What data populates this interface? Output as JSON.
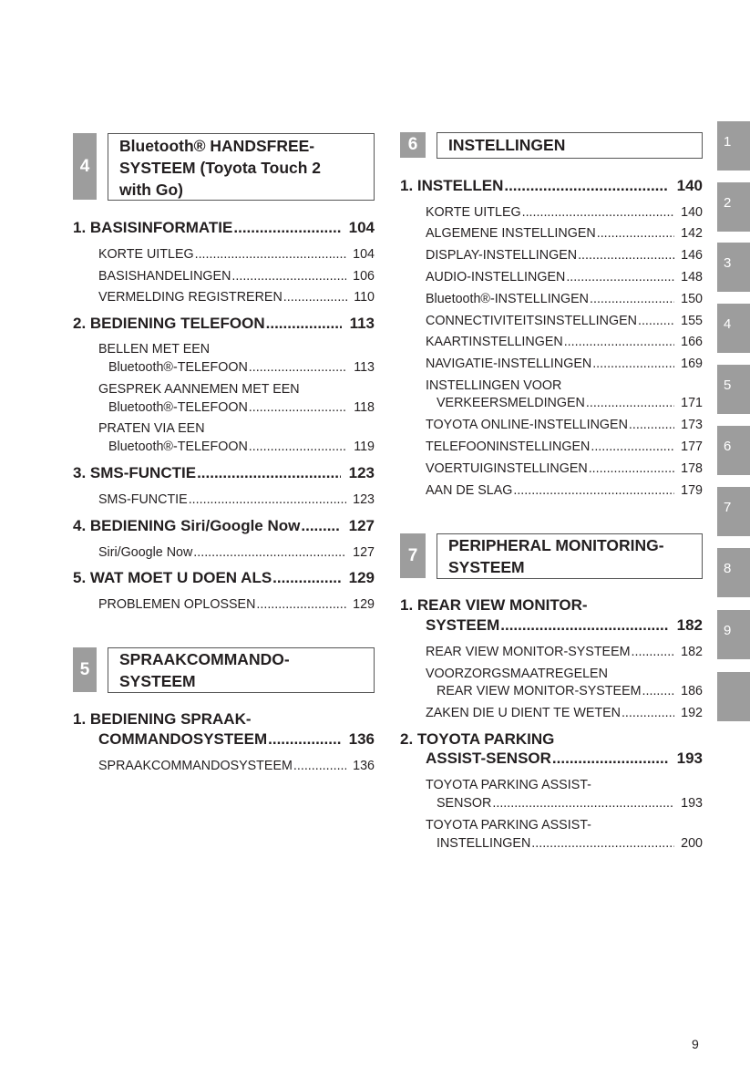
{
  "sections": {
    "s4": {
      "number": "4",
      "title_lines": [
        "Bluetooth® HANDSFREE-",
        "SYSTEEM (Toyota Touch 2",
        "with Go)"
      ]
    },
    "s5": {
      "number": "5",
      "title_lines": [
        "SPRAAKCOMMANDO-",
        "SYSTEEM"
      ]
    },
    "s6": {
      "number": "6",
      "title_lines": [
        "INSTELLINGEN"
      ]
    },
    "s7": {
      "number": "7",
      "title_lines": [
        "PERIPHERAL MONITORING-",
        "SYSTEEM"
      ]
    }
  },
  "left": {
    "items": [
      {
        "label": "1. BASISINFORMATIE",
        "page": "104"
      },
      {
        "label": "KORTE UITLEG",
        "page": "104"
      },
      {
        "label": "BASISHANDELINGEN",
        "page": "106"
      },
      {
        "label": "VERMELDING REGISTREREN",
        "page": "110"
      },
      {
        "label": "2. BEDIENING TELEFOON",
        "page": "113"
      },
      {
        "label": "BELLEN MET EEN",
        "page": ""
      },
      {
        "label": "Bluetooth®-TELEFOON",
        "page": "113"
      },
      {
        "label": "GESPREK AANNEMEN MET EEN",
        "page": ""
      },
      {
        "label": "Bluetooth®-TELEFOON",
        "page": "118"
      },
      {
        "label": "PRATEN VIA EEN",
        "page": ""
      },
      {
        "label": "Bluetooth®-TELEFOON",
        "page": "119"
      },
      {
        "label": "3. SMS-FUNCTIE",
        "page": "123"
      },
      {
        "label": "SMS-FUNCTIE",
        "page": "123"
      },
      {
        "label": "4. BEDIENING Siri/Google Now",
        "page": "127"
      },
      {
        "label": "Siri/Google Now",
        "page": "127"
      },
      {
        "label": "5. WAT MOET U DOEN ALS",
        "page": "129"
      },
      {
        "label": "PROBLEMEN OPLOSSEN",
        "page": "129"
      },
      {
        "label": "1. BEDIENING SPRAAK-",
        "page": ""
      },
      {
        "label": "COMMANDOSYSTEEM",
        "page": "136"
      },
      {
        "label": "SPRAAKCOMMANDOSYSTEEM",
        "page": "136"
      }
    ]
  },
  "right": {
    "items": [
      {
        "label": "1. INSTELLEN",
        "page": "140"
      },
      {
        "label": "KORTE UITLEG",
        "page": "140"
      },
      {
        "label": "ALGEMENE INSTELLINGEN",
        "page": "142"
      },
      {
        "label": "DISPLAY-INSTELLINGEN",
        "page": "146"
      },
      {
        "label": "AUDIO-INSTELLINGEN",
        "page": "148"
      },
      {
        "label": "Bluetooth®-INSTELLINGEN",
        "page": "150"
      },
      {
        "label": "CONNECTIVITEITSINSTELLINGEN",
        "page": "155"
      },
      {
        "label": "KAARTINSTELLINGEN",
        "page": "166"
      },
      {
        "label": "NAVIGATIE-INSTELLINGEN",
        "page": "169"
      },
      {
        "label": "INSTELLINGEN VOOR",
        "page": ""
      },
      {
        "label": "VERKEERSMELDINGEN",
        "page": "171"
      },
      {
        "label": "TOYOTA ONLINE-INSTELLINGEN",
        "page": "173"
      },
      {
        "label": "TELEFOONINSTELLINGEN",
        "page": "177"
      },
      {
        "label": "VOERTUIGINSTELLINGEN",
        "page": "178"
      },
      {
        "label": "AAN DE SLAG",
        "page": "179"
      },
      {
        "label": "1. REAR VIEW MONITOR-",
        "page": ""
      },
      {
        "label": "SYSTEEM",
        "page": "182"
      },
      {
        "label": "REAR VIEW MONITOR-SYSTEEM",
        "page": "182"
      },
      {
        "label": "VOORZORGSMAATREGELEN",
        "page": ""
      },
      {
        "label": "REAR VIEW MONITOR-SYSTEEM",
        "page": "186"
      },
      {
        "label": "ZAKEN DIE U DIENT TE WETEN",
        "page": "192"
      },
      {
        "label": "2. TOYOTA PARKING",
        "page": ""
      },
      {
        "label": "ASSIST-SENSOR",
        "page": "193"
      },
      {
        "label": "TOYOTA PARKING ASSIST-",
        "page": ""
      },
      {
        "label": "SENSOR",
        "page": "193"
      },
      {
        "label": "TOYOTA PARKING ASSIST-",
        "page": ""
      },
      {
        "label": "INSTELLINGEN",
        "page": "200"
      }
    ]
  },
  "tabs": [
    "1",
    "2",
    "3",
    "4",
    "5",
    "6",
    "7",
    "8",
    "9",
    ""
  ],
  "tab_color": "#9d9d9d",
  "page_number": "9"
}
